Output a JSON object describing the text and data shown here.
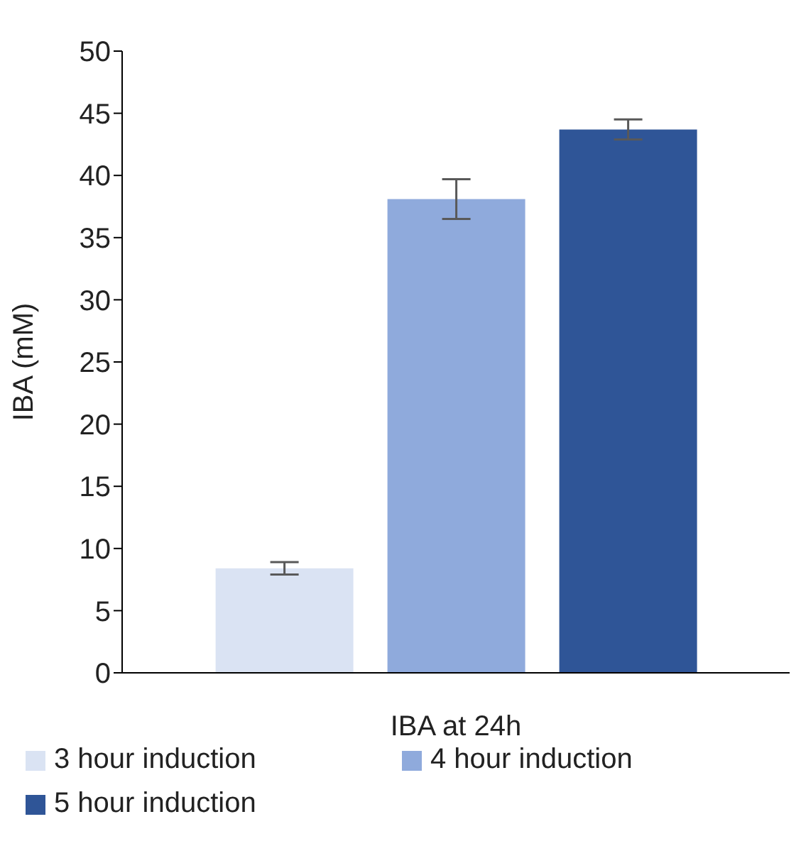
{
  "chart_data": {
    "type": "bar",
    "xlabel": "IBA at 24h",
    "ylabel": "IBA (mM)",
    "categories": [
      null
    ],
    "series": [
      {
        "name": "3 hour induction",
        "color": "#dae3f3",
        "values": [
          8.4
        ],
        "errors": [
          0.5
        ]
      },
      {
        "name": "4 hour induction",
        "color": "#8faadc",
        "values": [
          38.1
        ],
        "errors": [
          1.6
        ]
      },
      {
        "name": "5 hour induction",
        "color": "#2f5597",
        "values": [
          43.7
        ],
        "errors": [
          0.8
        ]
      }
    ],
    "ylim": [
      0,
      50
    ],
    "yticks": [
      0,
      5,
      10,
      15,
      20,
      25,
      30,
      35,
      40,
      45,
      50
    ],
    "grid": false,
    "legend": "bottom"
  }
}
